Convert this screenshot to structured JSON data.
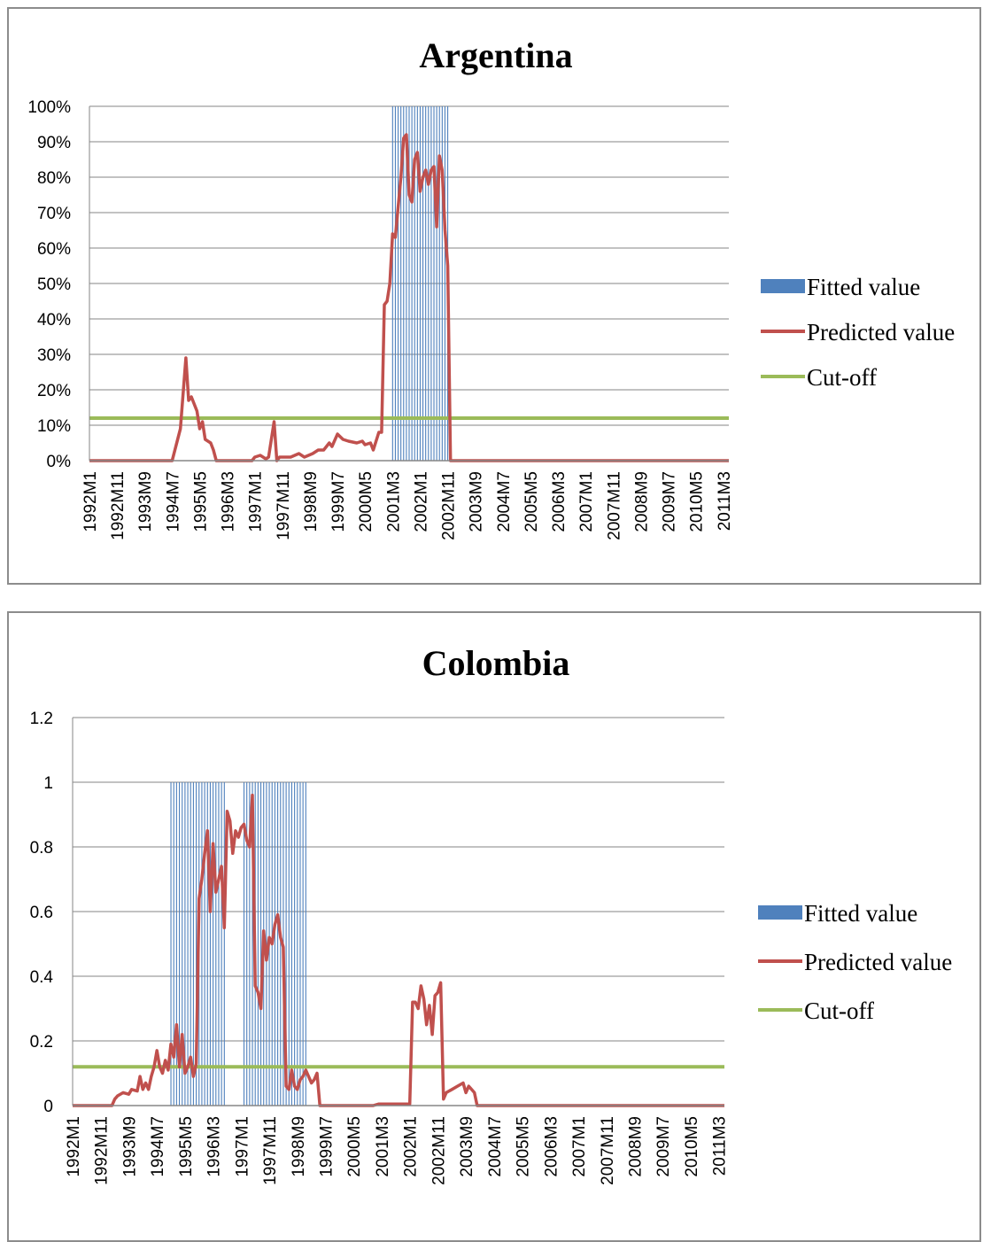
{
  "chart_data": [
    {
      "type": "line",
      "title": "Argentina",
      "xlabel": "",
      "ylabel": "",
      "ylim": [
        0,
        1
      ],
      "y_ticks": [
        0,
        0.1,
        0.2,
        0.3,
        0.4,
        0.5,
        0.6,
        0.7,
        0.8,
        0.9,
        1
      ],
      "y_tick_labels": [
        "0%",
        "10%",
        "20%",
        "30%",
        "40%",
        "50%",
        "60%",
        "70%",
        "80%",
        "90%",
        "100%"
      ],
      "x_range": [
        "1992M1",
        "2011M5"
      ],
      "x_tick_labels": [
        "1992M1",
        "1992M11",
        "1993M9",
        "1994M7",
        "1995M5",
        "1996M3",
        "1997M1",
        "1997M11",
        "1998M9",
        "1999M7",
        "2000M5",
        "2001M3",
        "2002M1",
        "2002M11",
        "2003M9",
        "2004M7",
        "2005M5",
        "2006M3",
        "2007M1",
        "2007M11",
        "2008M9",
        "2009M7",
        "2010M5",
        "2011M3"
      ],
      "legend_position": "right",
      "grid": true,
      "series": [
        {
          "name": "Fitted value",
          "type": "bar",
          "color": "#4f81bd",
          "value": 1,
          "periods": [
            [
              "2001M3",
              "2002M11"
            ]
          ]
        },
        {
          "name": "Predicted value",
          "type": "line",
          "color": "#c0504d",
          "points": [
            [
              "1992M1",
              0
            ],
            [
              "1994M7",
              0
            ],
            [
              "1994M9",
              0.06
            ],
            [
              "1994M10",
              0.09
            ],
            [
              "1994M12",
              0.29
            ],
            [
              "1995M1",
              0.17
            ],
            [
              "1995M2",
              0.18
            ],
            [
              "1995M4",
              0.14
            ],
            [
              "1995M5",
              0.09
            ],
            [
              "1995M6",
              0.11
            ],
            [
              "1995M7",
              0.06
            ],
            [
              "1995M9",
              0.05
            ],
            [
              "1995M10",
              0.03
            ],
            [
              "1995M11",
              0
            ],
            [
              "1996M12",
              0
            ],
            [
              "1997M1",
              0.01
            ],
            [
              "1997M3",
              0.015
            ],
            [
              "1997M5",
              0.005
            ],
            [
              "1997M6",
              0.01
            ],
            [
              "1997M8",
              0.11
            ],
            [
              "1997M9",
              0
            ],
            [
              "1997M10",
              0.01
            ],
            [
              "1998M2",
              0.01
            ],
            [
              "1998M5",
              0.02
            ],
            [
              "1998M7",
              0.01
            ],
            [
              "1998M10",
              0.02
            ],
            [
              "1998M12",
              0.03
            ],
            [
              "1999M2",
              0.03
            ],
            [
              "1999M4",
              0.05
            ],
            [
              "1999M5",
              0.04
            ],
            [
              "1999M7",
              0.075
            ],
            [
              "1999M9",
              0.06
            ],
            [
              "1999M11",
              0.055
            ],
            [
              "2000M2",
              0.05
            ],
            [
              "2000M4",
              0.055
            ],
            [
              "2000M5",
              0.045
            ],
            [
              "2000M7",
              0.05
            ],
            [
              "2000M8",
              0.03
            ],
            [
              "2000M10",
              0.08
            ],
            [
              "2000M11",
              0.08
            ],
            [
              "2000M12",
              0.44
            ],
            [
              "2001M1",
              0.45
            ],
            [
              "2001M2",
              0.5
            ],
            [
              "2001M3",
              0.64
            ],
            [
              "2001M4",
              0.63
            ],
            [
              "2001M6",
              0.8
            ],
            [
              "2001M7",
              0.91
            ],
            [
              "2001M8",
              0.92
            ],
            [
              "2001M9",
              0.75
            ],
            [
              "2001M10",
              0.73
            ],
            [
              "2001M11",
              0.85
            ],
            [
              "2001M12",
              0.87
            ],
            [
              "2002M1",
              0.76
            ],
            [
              "2002M2",
              0.8
            ],
            [
              "2002M3",
              0.82
            ],
            [
              "2002M4",
              0.78
            ],
            [
              "2002M5",
              0.82
            ],
            [
              "2002M6",
              0.83
            ],
            [
              "2002M7",
              0.66
            ],
            [
              "2002M8",
              0.86
            ],
            [
              "2002M9",
              0.82
            ],
            [
              "2002M10",
              0.65
            ],
            [
              "2002M11",
              0.55
            ],
            [
              "2002M12",
              0
            ],
            [
              "2011M5",
              0
            ]
          ]
        },
        {
          "name": "Cut-off",
          "type": "line",
          "color": "#9bbb59",
          "value": 0.12
        }
      ]
    },
    {
      "type": "line",
      "title": "Colombia",
      "xlabel": "",
      "ylabel": "",
      "ylim": [
        0,
        1.2
      ],
      "y_ticks": [
        0,
        0.2,
        0.4,
        0.6,
        0.8,
        1,
        1.2
      ],
      "y_tick_labels": [
        "0",
        "0.2",
        "0.4",
        "0.6",
        "0.8",
        "1",
        "1.2"
      ],
      "x_range": [
        "1992M1",
        "2011M5"
      ],
      "x_tick_labels": [
        "1992M1",
        "1992M11",
        "1993M9",
        "1994M7",
        "1995M5",
        "1996M3",
        "1997M1",
        "1997M11",
        "1998M9",
        "1999M7",
        "2000M5",
        "2001M3",
        "2002M1",
        "2002M11",
        "2003M9",
        "2004M7",
        "2005M5",
        "2006M3",
        "2007M1",
        "2007M11",
        "2008M9",
        "2009M7",
        "2010M5",
        "2011M3"
      ],
      "legend_position": "right",
      "grid": true,
      "series": [
        {
          "name": "Fitted value",
          "type": "bar",
          "color": "#4f81bd",
          "value": 1,
          "periods": [
            [
              "1994M12",
              "1996M7"
            ],
            [
              "1997M2",
              "1998M12"
            ]
          ]
        },
        {
          "name": "Predicted value",
          "type": "line",
          "color": "#c0504d",
          "points": [
            [
              "1992M1",
              0
            ],
            [
              "1993M3",
              0
            ],
            [
              "1993M4",
              0.02
            ],
            [
              "1993M5",
              0.03
            ],
            [
              "1993M7",
              0.04
            ],
            [
              "1993M9",
              0.035
            ],
            [
              "1993M10",
              0.05
            ],
            [
              "1993M12",
              0.045
            ],
            [
              "1994M1",
              0.09
            ],
            [
              "1994M2",
              0.05
            ],
            [
              "1994M3",
              0.07
            ],
            [
              "1994M4",
              0.05
            ],
            [
              "1994M5",
              0.09
            ],
            [
              "1994M6",
              0.12
            ],
            [
              "1994M7",
              0.17
            ],
            [
              "1994M8",
              0.12
            ],
            [
              "1994M9",
              0.1
            ],
            [
              "1994M10",
              0.14
            ],
            [
              "1994M11",
              0.11
            ],
            [
              "1994M12",
              0.19
            ],
            [
              "1995M1",
              0.15
            ],
            [
              "1995M2",
              0.25
            ],
            [
              "1995M3",
              0.12
            ],
            [
              "1995M4",
              0.22
            ],
            [
              "1995M5",
              0.1
            ],
            [
              "1995M6",
              0.12
            ],
            [
              "1995M7",
              0.15
            ],
            [
              "1995M8",
              0.09
            ],
            [
              "1995M9",
              0.13
            ],
            [
              "1995M10",
              0.64
            ],
            [
              "1995M11",
              0.7
            ],
            [
              "1995M12",
              0.78
            ],
            [
              "1996M1",
              0.85
            ],
            [
              "1996M2",
              0.6
            ],
            [
              "1996M3",
              0.81
            ],
            [
              "1996M4",
              0.66
            ],
            [
              "1996M5",
              0.7
            ],
            [
              "1996M6",
              0.74
            ],
            [
              "1996M7",
              0.55
            ],
            [
              "1996M8",
              0.91
            ],
            [
              "1996M9",
              0.88
            ],
            [
              "1996M10",
              0.78
            ],
            [
              "1996M11",
              0.85
            ],
            [
              "1996M12",
              0.83
            ],
            [
              "1997M1",
              0.86
            ],
            [
              "1997M2",
              0.87
            ],
            [
              "1997M3",
              0.82
            ],
            [
              "1997M4",
              0.8
            ],
            [
              "1997M5",
              0.96
            ],
            [
              "1997M6",
              0.37
            ],
            [
              "1997M7",
              0.35
            ],
            [
              "1997M8",
              0.3
            ],
            [
              "1997M9",
              0.54
            ],
            [
              "1997M10",
              0.45
            ],
            [
              "1997M11",
              0.52
            ],
            [
              "1997M12",
              0.5
            ],
            [
              "1998M1",
              0.56
            ],
            [
              "1998M2",
              0.59
            ],
            [
              "1998M3",
              0.52
            ],
            [
              "1998M4",
              0.49
            ],
            [
              "1998M5",
              0.06
            ],
            [
              "1998M6",
              0.05
            ],
            [
              "1998M7",
              0.11
            ],
            [
              "1998M8",
              0.06
            ],
            [
              "1998M9",
              0.05
            ],
            [
              "1998M10",
              0.08
            ],
            [
              "1998M11",
              0.09
            ],
            [
              "1998M12",
              0.11
            ],
            [
              "1999M2",
              0.07
            ],
            [
              "1999M3",
              0.08
            ],
            [
              "1999M4",
              0.1
            ],
            [
              "1999M5",
              0
            ],
            [
              "2000M12",
              0
            ],
            [
              "2001M2",
              0.005
            ],
            [
              "2002M1",
              0.005
            ],
            [
              "2002M2",
              0.32
            ],
            [
              "2002M3",
              0.32
            ],
            [
              "2002M4",
              0.3
            ],
            [
              "2002M5",
              0.37
            ],
            [
              "2002M6",
              0.33
            ],
            [
              "2002M7",
              0.25
            ],
            [
              "2002M8",
              0.31
            ],
            [
              "2002M9",
              0.22
            ],
            [
              "2002M10",
              0.34
            ],
            [
              "2002M11",
              0.35
            ],
            [
              "2002M12",
              0.38
            ],
            [
              "2003M1",
              0.02
            ],
            [
              "2003M2",
              0.04
            ],
            [
              "2003M4",
              0.05
            ],
            [
              "2003M6",
              0.06
            ],
            [
              "2003M8",
              0.07
            ],
            [
              "2003M9",
              0.04
            ],
            [
              "2003M10",
              0.06
            ],
            [
              "2003M12",
              0.04
            ],
            [
              "2004M1",
              0
            ],
            [
              "2011M5",
              0
            ]
          ]
        },
        {
          "name": "Cut-off",
          "type": "line",
          "color": "#9bbb59",
          "value": 0.12
        }
      ]
    }
  ]
}
